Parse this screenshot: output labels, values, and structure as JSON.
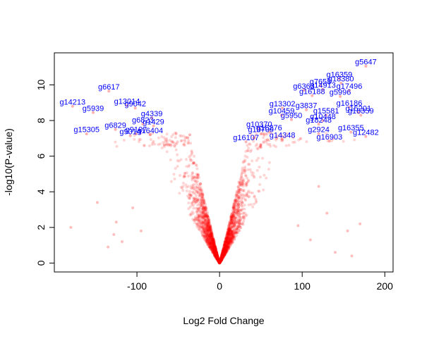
{
  "chart_data": {
    "type": "scatter",
    "title": "",
    "xlabel": "Log2 Fold Change",
    "ylabel": "-log10(P-value)",
    "xlim": [
      -200,
      210
    ],
    "ylim": [
      -0.5,
      11.8
    ],
    "x_ticks": [
      -100,
      0,
      100,
      200
    ],
    "y_ticks": [
      0,
      2,
      4,
      6,
      8,
      10
    ],
    "grid": false,
    "legend": "none",
    "colors": {
      "points": "#ff0000",
      "labels": "#0000ff",
      "axis": "#000000"
    },
    "background_points_note": "dense translucent red points forming a volcano shape around x=0",
    "labeled_genes": [
      {
        "name": "g5647",
        "x": 177,
        "y": 11.3
      },
      {
        "name": "g16359",
        "x": 145,
        "y": 10.6
      },
      {
        "name": "g18380",
        "x": 147,
        "y": 10.35
      },
      {
        "name": "g7658",
        "x": 122,
        "y": 10.2
      },
      {
        "name": "g17496",
        "x": 157,
        "y": 9.95
      },
      {
        "name": "g6363",
        "x": 102,
        "y": 9.95
      },
      {
        "name": "g14913",
        "x": 125,
        "y": 10.0
      },
      {
        "name": "g16188",
        "x": 112,
        "y": 9.65
      },
      {
        "name": "g5996",
        "x": 146,
        "y": 9.6
      },
      {
        "name": "g16186",
        "x": 157,
        "y": 9.0
      },
      {
        "name": "g13302",
        "x": 76,
        "y": 8.95
      },
      {
        "name": "g3837",
        "x": 105,
        "y": 8.85
      },
      {
        "name": "g15201",
        "x": 168,
        "y": 8.7
      },
      {
        "name": "g10459",
        "x": 75,
        "y": 8.55
      },
      {
        "name": "g15581",
        "x": 129,
        "y": 8.55
      },
      {
        "name": "g16359",
        "x": 171,
        "y": 8.55
      },
      {
        "name": "g5950",
        "x": 87,
        "y": 8.3
      },
      {
        "name": "g10448",
        "x": 125,
        "y": 8.25
      },
      {
        "name": "g18248",
        "x": 120,
        "y": 8.05
      },
      {
        "name": "g2924",
        "x": 120,
        "y": 7.5
      },
      {
        "name": "g16355",
        "x": 159,
        "y": 7.6
      },
      {
        "name": "g12482",
        "x": 177,
        "y": 7.35
      },
      {
        "name": "g16903",
        "x": 133,
        "y": 7.1
      },
      {
        "name": "g14348",
        "x": 76,
        "y": 7.2
      },
      {
        "name": "g16276",
        "x": 60,
        "y": 7.6
      },
      {
        "name": "g10370",
        "x": 48,
        "y": 7.8
      },
      {
        "name": "g10709",
        "x": 50,
        "y": 7.5
      },
      {
        "name": "g16107",
        "x": 32,
        "y": 7.05
      },
      {
        "name": "g6617",
        "x": -134,
        "y": 9.9
      },
      {
        "name": "g14213",
        "x": -178,
        "y": 9.05
      },
      {
        "name": "g13014",
        "x": -112,
        "y": 9.1
      },
      {
        "name": "g9042",
        "x": -102,
        "y": 8.95
      },
      {
        "name": "g5939",
        "x": -153,
        "y": 8.7
      },
      {
        "name": "g4339",
        "x": -82,
        "y": 8.4
      },
      {
        "name": "g6823",
        "x": -93,
        "y": 8.05
      },
      {
        "name": "g1429",
        "x": -80,
        "y": 7.95
      },
      {
        "name": "g6829",
        "x": -126,
        "y": 7.75
      },
      {
        "name": "g15305",
        "x": -161,
        "y": 7.5
      },
      {
        "name": "g9107",
        "x": -101,
        "y": 7.5
      },
      {
        "name": "g16404",
        "x": -84,
        "y": 7.45
      },
      {
        "name": "g9014",
        "x": -108,
        "y": 7.4
      }
    ]
  }
}
